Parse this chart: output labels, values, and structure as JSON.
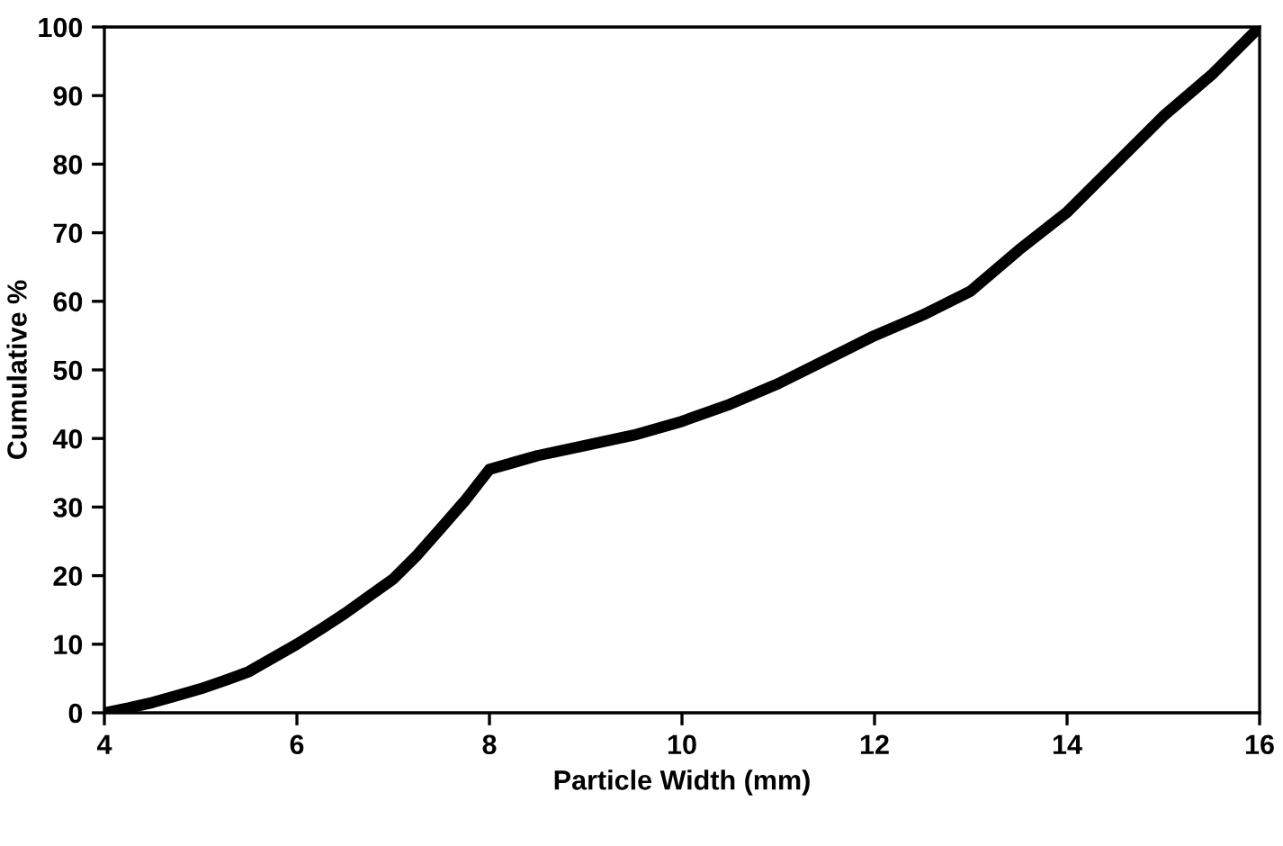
{
  "chart_data": {
    "type": "line",
    "xlabel": "Particle Width (mm)",
    "ylabel": "Cumulative %",
    "series": [
      {
        "color": "#000000",
        "x": [
          4,
          4.25,
          4.5,
          4.75,
          5,
          5.25,
          5.5,
          5.75,
          6,
          6.25,
          6.5,
          6.75,
          7,
          7.25,
          7.5,
          7.75,
          8,
          8.25,
          8.5,
          9,
          9.5,
          10,
          10.5,
          11,
          11.5,
          12,
          12.5,
          13,
          13.5,
          14,
          14.5,
          15,
          15.5,
          16
        ],
        "values": [
          0,
          0.7,
          1.5,
          2.5,
          3.5,
          4.7,
          6,
          8,
          10,
          12.2,
          14.5,
          17,
          19.5,
          23,
          27,
          31,
          35.5,
          36.5,
          37.5,
          39,
          40.5,
          42.5,
          45,
          48,
          51.5,
          55,
          58,
          61.5,
          67.5,
          73,
          80,
          87,
          93,
          100
        ]
      }
    ],
    "xlim": [
      4,
      16
    ],
    "xticks": [
      4,
      6,
      8,
      10,
      12,
      14,
      16
    ],
    "ylim": [
      0,
      100
    ],
    "yticks": [
      0,
      10,
      20,
      30,
      40,
      50,
      60,
      70,
      80,
      90,
      100
    ],
    "grid": false,
    "line_style": "solid"
  }
}
